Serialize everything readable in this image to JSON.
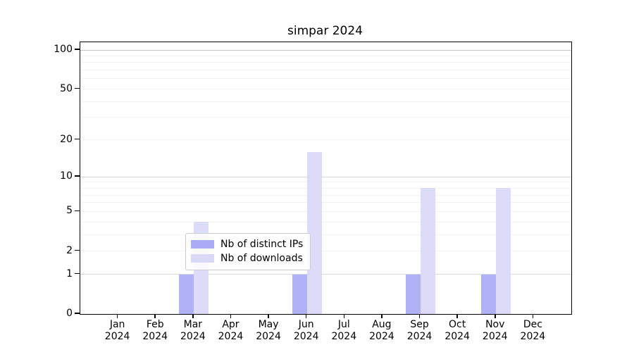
{
  "title": "simpar 2024",
  "chart_data": {
    "type": "bar",
    "title": "simpar 2024",
    "categories": [
      "Jan 2024",
      "Feb 2024",
      "Mar 2024",
      "Apr 2024",
      "May 2024",
      "Jun 2024",
      "Jul 2024",
      "Aug 2024",
      "Sep 2024",
      "Oct 2024",
      "Nov 2024",
      "Dec 2024"
    ],
    "x_tick_line1": [
      "Jan",
      "Feb",
      "Mar",
      "Apr",
      "May",
      "Jun",
      "Jul",
      "Aug",
      "Sep",
      "Oct",
      "Nov",
      "Dec"
    ],
    "x_tick_line2": [
      "2024",
      "2024",
      "2024",
      "2024",
      "2024",
      "2024",
      "2024",
      "2024",
      "2024",
      "2024",
      "2024",
      "2024"
    ],
    "series": [
      {
        "name": "Nb of distinct IPs",
        "color": "#aaaaf7",
        "values": [
          0,
          0,
          1,
          0,
          0,
          1,
          0,
          0,
          1,
          0,
          1,
          0
        ]
      },
      {
        "name": "Nb of downloads",
        "color": "#d9d9f7",
        "values": [
          0,
          0,
          4,
          0,
          0,
          16,
          0,
          0,
          8,
          0,
          8,
          0
        ]
      }
    ],
    "xlabel": "",
    "ylabel": "",
    "yscale": "log1p",
    "yticks": [
      0,
      1,
      2,
      5,
      10,
      20,
      50,
      100
    ],
    "ytick_labels": [
      "0",
      "1",
      "2",
      "5",
      "10",
      "20",
      "50",
      "100"
    ],
    "ylim": [
      0,
      115
    ],
    "grid": "horizontal",
    "legend_position": "lower center"
  },
  "legend": {
    "items": [
      {
        "label": "Nb of distinct IPs",
        "color": "#aaaaf7"
      },
      {
        "label": "Nb of downloads",
        "color": "#d9d9f7"
      }
    ]
  },
  "colors": {
    "distinct_ips": "#aaaaf7",
    "downloads": "#d9d9f7",
    "grid_major": "#d9d9d9",
    "grid_top": "#c5c5c5",
    "grid_minor": "#f2f2f2",
    "spine": "#000000"
  }
}
